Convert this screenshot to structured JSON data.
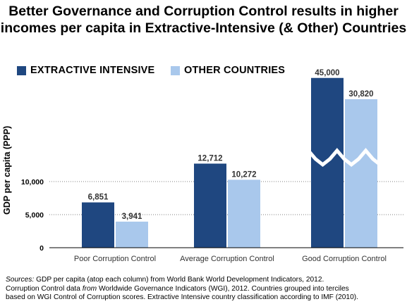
{
  "title": {
    "line1": "Better Governance and Corruption Control results in higher",
    "line2": "incomes per capita in Extractive-Intensive (& Other) Countries"
  },
  "colors": {
    "extractive": "#1f4780",
    "other": "#a9c8ec",
    "axis": "#000000",
    "gridline": "#808080",
    "break": "#ffffff"
  },
  "chart_data": {
    "type": "bar",
    "title": "Better Governance and Corruption Control results in higher incomes per capita in Extractive-Intensive (& Other) Countries",
    "ylabel": "GDP per capita (PPP)",
    "xlabel": "",
    "categories": [
      "Poor Corruption Control",
      "Average Corruption Control",
      "Good Corruption Control"
    ],
    "series": [
      {
        "name": "EXTRACTIVE INTENSIVE",
        "values": [
          6851,
          12712,
          45000
        ],
        "labels": [
          "6,851",
          "12,712",
          "45,000"
        ]
      },
      {
        "name": "OTHER COUNTRIES",
        "values": [
          3941,
          10272,
          30820
        ],
        "labels": [
          "3,941",
          "10,272",
          "30,820"
        ]
      }
    ],
    "yticks": [
      {
        "value": 0,
        "label": "0"
      },
      {
        "value": 5000,
        "label": "5,000"
      },
      {
        "value": 10000,
        "label": "10,000"
      }
    ],
    "axis_break": true,
    "gridlines": "dotted at 5,000 and 10,000",
    "legend_position": "top-left"
  },
  "sources": {
    "label": "Sources",
    "line1": "GDP per capita (atop each column) from World Bank World Development Indicators, 2012.",
    "line2_pre": "Corruption Control data ",
    "line2_from": "from",
    "line2_post": " Worldwide Governance Indicators (WGI), 2012. Countries grouped into terciles",
    "line3": "based on WGI Control of Corruption scores. Extractive Intensive country classification according to IMF (2010)."
  }
}
